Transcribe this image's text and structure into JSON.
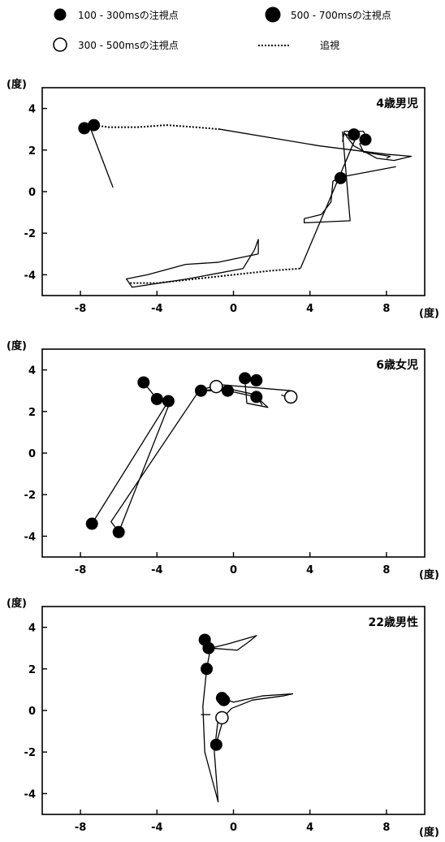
{
  "legend": {
    "items": [
      {
        "label": "100 - 300msの注視点",
        "marker": "filled-small"
      },
      {
        "label": "500 - 700msの注視点",
        "marker": "filled-large"
      },
      {
        "label": "300 - 500msの注視点",
        "marker": "open"
      },
      {
        "label": "追視",
        "marker": "dotted-line"
      }
    ]
  },
  "chart_data": [
    {
      "type": "scatter",
      "title": "4歳男児",
      "ylabel": "(度)",
      "xunit": "(度)",
      "xlim": [
        -10,
        10
      ],
      "ylim": [
        -5,
        5
      ],
      "xticks": [
        -8,
        -4,
        0,
        4,
        8
      ],
      "yticks": [
        4,
        2,
        0,
        -2,
        -4
      ],
      "grid": false,
      "saccade_paths": [
        [
          [
            -6.3,
            0.2
          ],
          [
            -7.5,
            3.1
          ]
        ],
        [
          [
            -0.7,
            3.0
          ],
          [
            4.5,
            2.2
          ],
          [
            8.0,
            1.8
          ],
          [
            9.3,
            1.7
          ],
          [
            8.4,
            1.5
          ],
          [
            7.5,
            1.6
          ],
          [
            6.3,
            2.2
          ],
          [
            5.8,
            2.8
          ],
          [
            6.4,
            2.5
          ]
        ],
        [
          [
            5.7,
            2.4
          ],
          [
            5.8,
            2.9
          ],
          [
            6.8,
            2.9
          ],
          [
            7.0,
            2.5
          ],
          [
            6.6,
            2.3
          ],
          [
            6.8,
            1.9
          ],
          [
            8.2,
            1.7
          ],
          [
            8.0,
            1.6
          ]
        ],
        [
          [
            5.7,
            2.9
          ],
          [
            6.1,
            -1.4
          ],
          [
            3.7,
            -1.5
          ],
          [
            3.7,
            -1.3
          ],
          [
            4.6,
            -1.1
          ],
          [
            5.1,
            -0.5
          ],
          [
            5.2,
            0.5
          ],
          [
            5.6,
            0.7
          ],
          [
            8.5,
            1.2
          ]
        ],
        [
          [
            6.4,
            2.6
          ],
          [
            3.5,
            -3.7
          ]
        ],
        [
          [
            1.3,
            -3.0
          ],
          [
            -0.8,
            -3.4
          ],
          [
            -2.5,
            -3.5
          ],
          [
            -4.5,
            -4.0
          ],
          [
            -5.6,
            -4.2
          ],
          [
            -5.3,
            -4.6
          ],
          [
            -2.4,
            -4.2
          ],
          [
            0.5,
            -3.7
          ],
          [
            1.1,
            -2.8
          ],
          [
            1.3,
            -2.3
          ],
          [
            1.3,
            -3.0
          ]
        ]
      ],
      "pursuit_paths": [
        [
          [
            -7.4,
            3.2
          ],
          [
            -6.5,
            3.1
          ],
          [
            -5.0,
            3.1
          ],
          [
            -3.5,
            3.2
          ],
          [
            -2.0,
            3.1
          ],
          [
            -0.7,
            3.0
          ]
        ],
        [
          [
            -5.4,
            -4.4
          ],
          [
            -4.0,
            -4.4
          ],
          [
            -2.0,
            -4.2
          ],
          [
            0.0,
            -4.0
          ],
          [
            2.0,
            -3.8
          ],
          [
            3.5,
            -3.7
          ]
        ]
      ],
      "fixations": [
        {
          "x": -7.8,
          "y": 3.05,
          "type": "500-700ms"
        },
        {
          "x": -7.3,
          "y": 3.2,
          "type": "500-700ms"
        },
        {
          "x": 6.3,
          "y": 2.75,
          "type": "500-700ms"
        },
        {
          "x": 6.9,
          "y": 2.5,
          "type": "500-700ms"
        },
        {
          "x": 5.6,
          "y": 0.65,
          "type": "500-700ms"
        }
      ]
    },
    {
      "type": "scatter",
      "title": "6歳女児",
      "ylabel": "(度)",
      "xunit": "(度)",
      "xlim": [
        -10,
        10
      ],
      "ylim": [
        -5,
        5
      ],
      "xticks": [
        -8,
        -4,
        0,
        4,
        8
      ],
      "yticks": [
        4,
        2,
        0,
        -2,
        -4
      ],
      "grid": false,
      "saccade_paths": [
        [
          [
            -7.4,
            -3.4
          ],
          [
            -3.4,
            2.5
          ],
          [
            -3.3,
            2.6
          ],
          [
            -4.0,
            2.6
          ],
          [
            -4.7,
            3.4
          ]
        ],
        [
          [
            -6.0,
            -3.8
          ],
          [
            -6.4,
            -3.3
          ],
          [
            -1.8,
            3.0
          ],
          [
            -0.8,
            3.3
          ],
          [
            3.0,
            3.0
          ],
          [
            3.0,
            2.6
          ],
          [
            2.5,
            2.8
          ]
        ],
        [
          [
            -6.0,
            -3.8
          ],
          [
            -3.3,
            2.5
          ]
        ],
        [
          [
            -1.8,
            3.0
          ],
          [
            -0.3,
            3.0
          ],
          [
            1.2,
            2.7
          ],
          [
            1.8,
            2.2
          ],
          [
            0.7,
            2.4
          ],
          [
            0.6,
            3.5
          ],
          [
            1.3,
            3.5
          ]
        ],
        [
          [
            -1.8,
            3.0
          ],
          [
            -0.3,
            3.1
          ],
          [
            1.2,
            2.8
          ],
          [
            1.5,
            2.3
          ]
        ]
      ],
      "pursuit_paths": [],
      "fixations": [
        {
          "x": -4.7,
          "y": 3.4,
          "type": "500-700ms"
        },
        {
          "x": -4.0,
          "y": 2.6,
          "type": "500-700ms"
        },
        {
          "x": -3.4,
          "y": 2.5,
          "type": "500-700ms"
        },
        {
          "x": -1.7,
          "y": 3.0,
          "type": "500-700ms"
        },
        {
          "x": -0.3,
          "y": 3.0,
          "type": "500-700ms"
        },
        {
          "x": 0.6,
          "y": 3.6,
          "type": "500-700ms"
        },
        {
          "x": 1.2,
          "y": 3.5,
          "type": "500-700ms"
        },
        {
          "x": 1.2,
          "y": 2.7,
          "type": "500-700ms"
        },
        {
          "x": -7.4,
          "y": -3.4,
          "type": "500-700ms"
        },
        {
          "x": -6.0,
          "y": -3.8,
          "type": "500-700ms"
        },
        {
          "x": -0.9,
          "y": 3.2,
          "type": "300-500ms"
        },
        {
          "x": 3.0,
          "y": 2.7,
          "type": "300-500ms"
        }
      ]
    },
    {
      "type": "scatter",
      "title": "22歳男性",
      "ylabel": "(度)",
      "xunit": "(度)",
      "xlim": [
        -10,
        10
      ],
      "ylim": [
        -5,
        5
      ],
      "xticks": [
        -8,
        -4,
        0,
        4,
        8
      ],
      "yticks": [
        4,
        2,
        0,
        -2,
        -4
      ],
      "grid": false,
      "saccade_paths": [
        [
          [
            -1.4,
            3.4
          ],
          [
            -1.2,
            3.0
          ],
          [
            -0.3,
            3.2
          ],
          [
            1.2,
            3.6
          ],
          [
            0.8,
            3.3
          ],
          [
            0.2,
            2.9
          ],
          [
            -1.2,
            3.0
          ],
          [
            -1.4,
            2.0
          ],
          [
            -1.6,
            0.2
          ],
          [
            -1.5,
            -2.0
          ],
          [
            -0.8,
            -4.4
          ],
          [
            -1.0,
            -2.0
          ],
          [
            -0.8,
            -0.4
          ]
        ],
        [
          [
            -0.6,
            0.6
          ],
          [
            0.0,
            0.4
          ],
          [
            1.5,
            0.7
          ],
          [
            3.1,
            0.8
          ],
          [
            2.6,
            0.7
          ],
          [
            1.0,
            0.5
          ],
          [
            -0.1,
            0.1
          ],
          [
            -0.5,
            -0.3
          ],
          [
            -0.9,
            -1.6
          ]
        ],
        [
          [
            -1.7,
            -0.2
          ],
          [
            -1.2,
            -0.2
          ]
        ]
      ],
      "pursuit_paths": [],
      "fixations": [
        {
          "x": -1.5,
          "y": 3.4,
          "type": "500-700ms"
        },
        {
          "x": -1.3,
          "y": 3.0,
          "type": "500-700ms"
        },
        {
          "x": -1.4,
          "y": 2.0,
          "type": "500-700ms"
        },
        {
          "x": -0.6,
          "y": 0.6,
          "type": "500-700ms"
        },
        {
          "x": -0.5,
          "y": 0.5,
          "type": "500-700ms"
        },
        {
          "x": -0.9,
          "y": -1.65,
          "type": "500-700ms"
        },
        {
          "x": -0.6,
          "y": -0.35,
          "type": "300-500ms"
        }
      ]
    }
  ]
}
